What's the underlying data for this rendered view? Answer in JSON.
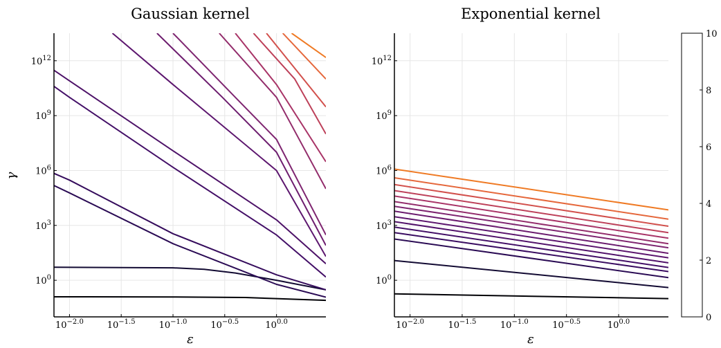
{
  "chart_data": [
    {
      "type": "line",
      "title": "Gaussian kernel",
      "xlabel": "ε",
      "ylabel": "γ",
      "x_scale": "log10",
      "y_scale": "log10",
      "xlim": [
        0.00708,
        3.0
      ],
      "ylim": [
        0.01,
        32000000000000.0
      ],
      "grid": true,
      "x_ticks": [
        {
          "base": "10",
          "exp": "−2.0",
          "value": 0.01
        },
        {
          "base": "10",
          "exp": "−1.5",
          "value": 0.0316
        },
        {
          "base": "10",
          "exp": "−1.0",
          "value": 0.1
        },
        {
          "base": "10",
          "exp": "−0.5",
          "value": 0.316
        },
        {
          "base": "10",
          "exp": "0.0",
          "value": 1.0
        }
      ],
      "y_ticks": [
        {
          "base": "10",
          "exp": "0",
          "value": 1
        },
        {
          "base": "10",
          "exp": "3",
          "value": 1000
        },
        {
          "base": "10",
          "exp": "6",
          "value": 1000000
        },
        {
          "base": "10",
          "exp": "9",
          "value": 1000000000
        },
        {
          "base": "10",
          "exp": "12",
          "value": 1000000000000
        }
      ],
      "series": [
        {
          "color_value": 0.0,
          "color": "#000004",
          "points": [
            [
              0.00708,
              0.125
            ],
            [
              0.1,
              0.123
            ],
            [
              0.5,
              0.115
            ],
            [
              1.0,
              0.1
            ],
            [
              3.0,
              0.08
            ]
          ]
        },
        {
          "color_value": 1.0,
          "color": "#120a32",
          "points": [
            [
              0.00708,
              5.2
            ],
            [
              0.1,
              4.8
            ],
            [
              0.2,
              4.0
            ],
            [
              0.4,
              2.5
            ],
            [
              1.0,
              1.0
            ],
            [
              3.0,
              0.3
            ]
          ]
        },
        {
          "color_value": 2.0,
          "color": "#2a0b54",
          "points": [
            [
              0.00708,
              150000
            ],
            [
              0.01,
              60000
            ],
            [
              0.1,
              100
            ],
            [
              1.0,
              0.6
            ],
            [
              3.0,
              0.12
            ]
          ]
        },
        {
          "color_value": 2.2,
          "color": "#350c5c",
          "points": [
            [
              0.00708,
              700000
            ],
            [
              0.01,
              300000
            ],
            [
              0.1,
              350
            ],
            [
              1.0,
              2
            ],
            [
              3.0,
              0.3
            ]
          ]
        },
        {
          "color_value": 3.0,
          "color": "#430f67",
          "points": [
            [
              0.00708,
              40000000000.0
            ],
            [
              0.01,
              10000000000.0
            ],
            [
              0.1,
              1500000.0
            ],
            [
              1.0,
              300
            ],
            [
              3.0,
              1.5
            ]
          ]
        },
        {
          "color_value": 3.2,
          "color": "#4d1268",
          "points": [
            [
              0.00708,
              300000000000.0
            ],
            [
              0.01,
              80000000000.0
            ],
            [
              0.1,
              12000000.0
            ],
            [
              1.0,
              2000
            ],
            [
              3.0,
              8
            ]
          ]
        },
        {
          "color_value": 4.0,
          "color": "#5c166e",
          "points": [
            [
              0.026,
              32000000000000.0
            ],
            [
              0.1,
              50000000000.0
            ],
            [
              1.0,
              1000000.0
            ],
            [
              3.0,
              20
            ]
          ]
        },
        {
          "color_value": 4.6,
          "color": "#6d1d6e",
          "points": [
            [
              0.07,
              32000000000000.0
            ],
            [
              0.3,
              10000000000.0
            ],
            [
              1.0,
              10000000.0
            ],
            [
              3.0,
              80
            ]
          ]
        },
        {
          "color_value": 5.0,
          "color": "#7e2570",
          "points": [
            [
              0.1,
              32000000000000.0
            ],
            [
              0.4,
              10000000000.0
            ],
            [
              1.0,
              50000000.0
            ],
            [
              3.0,
              300
            ]
          ]
        },
        {
          "color_value": 5.6,
          "color": "#922c6b",
          "points": [
            [
              0.28,
              32000000000000.0
            ],
            [
              1.0,
              10000000000.0
            ],
            [
              3.0,
              100000.0
            ]
          ]
        },
        {
          "color_value": 6.0,
          "color": "#a83467",
          "points": [
            [
              0.4,
              32000000000000.0
            ],
            [
              1.0,
              50000000000.0
            ],
            [
              3.0,
              3000000.0
            ]
          ]
        },
        {
          "color_value": 6.6,
          "color": "#bd4059",
          "points": [
            [
              0.6,
              32000000000000.0
            ],
            [
              1.5,
              100000000000.0
            ],
            [
              3.0,
              100000000.0
            ]
          ]
        },
        {
          "color_value": 7.0,
          "color": "#d2504c",
          "points": [
            [
              0.8,
              32000000000000.0
            ],
            [
              3.0,
              3000000000.0
            ]
          ]
        },
        {
          "color_value": 8.0,
          "color": "#e5673b",
          "points": [
            [
              1.15,
              32000000000000.0
            ],
            [
              3.0,
              100000000000.0
            ]
          ]
        },
        {
          "color_value": 9.0,
          "color": "#ef7a24",
          "points": [
            [
              1.4,
              32000000000000.0
            ],
            [
              3.0,
              1500000000000.0
            ]
          ]
        }
      ]
    },
    {
      "type": "line",
      "title": "Exponential kernel",
      "xlabel": "ε",
      "ylabel": "",
      "x_scale": "log10",
      "y_scale": "log10",
      "xlim": [
        0.00708,
        3.0
      ],
      "ylim": [
        0.01,
        32000000000000.0
      ],
      "grid": true,
      "x_ticks": [
        {
          "base": "10",
          "exp": "−2.0",
          "value": 0.01
        },
        {
          "base": "10",
          "exp": "−1.5",
          "value": 0.0316
        },
        {
          "base": "10",
          "exp": "−1.0",
          "value": 0.1
        },
        {
          "base": "10",
          "exp": "−0.5",
          "value": 0.316
        },
        {
          "base": "10",
          "exp": "0.0",
          "value": 1.0
        }
      ],
      "y_ticks": [
        {
          "base": "10",
          "exp": "0",
          "value": 1
        },
        {
          "base": "10",
          "exp": "3",
          "value": 1000
        },
        {
          "base": "10",
          "exp": "6",
          "value": 1000000
        },
        {
          "base": "10",
          "exp": "9",
          "value": 1000000000
        },
        {
          "base": "10",
          "exp": "12",
          "value": 1000000000000
        }
      ],
      "series": [
        {
          "color_value": 0.0,
          "color": "#000004",
          "points": [
            [
              0.00708,
              0.18
            ],
            [
              3.0,
              0.1
            ]
          ]
        },
        {
          "color_value": 1.0,
          "color": "#120a32",
          "points": [
            [
              0.00708,
              12
            ],
            [
              3.0,
              0.4
            ]
          ]
        },
        {
          "color_value": 2.0,
          "color": "#2a0b54",
          "points": [
            [
              0.00708,
              180
            ],
            [
              3.0,
              1.4
            ]
          ]
        },
        {
          "color_value": 2.5,
          "color": "#390c61",
          "points": [
            [
              0.00708,
              400
            ],
            [
              3.0,
              3
            ]
          ]
        },
        {
          "color_value": 3.0,
          "color": "#430f67",
          "points": [
            [
              0.00708,
              800
            ],
            [
              3.0,
              5
            ]
          ]
        },
        {
          "color_value": 3.5,
          "color": "#51126a",
          "points": [
            [
              0.00708,
              1600
            ],
            [
              3.0,
              9
            ]
          ]
        },
        {
          "color_value": 4.0,
          "color": "#5c166e",
          "points": [
            [
              0.00708,
              3000
            ],
            [
              3.0,
              17
            ]
          ]
        },
        {
          "color_value": 4.5,
          "color": "#6a1b6e",
          "points": [
            [
              0.00708,
              6000
            ],
            [
              3.0,
              30
            ]
          ]
        },
        {
          "color_value": 5.0,
          "color": "#7e2570",
          "points": [
            [
              0.00708,
              11000
            ],
            [
              3.0,
              60
            ]
          ]
        },
        {
          "color_value": 5.5,
          "color": "#922c6b",
          "points": [
            [
              0.00708,
              20000
            ],
            [
              3.0,
              100
            ]
          ]
        },
        {
          "color_value": 6.0,
          "color": "#a83467",
          "points": [
            [
              0.00708,
              40000
            ],
            [
              3.0,
              200
            ]
          ]
        },
        {
          "color_value": 6.5,
          "color": "#bd4059",
          "points": [
            [
              0.00708,
              80000
            ],
            [
              3.0,
              400
            ]
          ]
        },
        {
          "color_value": 7.0,
          "color": "#d2504c",
          "points": [
            [
              0.00708,
              170000
            ],
            [
              3.0,
              900
            ]
          ]
        },
        {
          "color_value": 8.0,
          "color": "#e5673b",
          "points": [
            [
              0.00708,
              400000
            ],
            [
              3.0,
              2200
            ]
          ]
        },
        {
          "color_value": 9.0,
          "color": "#ef7a24",
          "points": [
            [
              0.00708,
              1200000
            ],
            [
              3.0,
              7000
            ]
          ]
        }
      ]
    }
  ],
  "colorbar": {
    "min": 0,
    "max": 10,
    "ticks": [
      {
        "label": "0",
        "value": 0
      },
      {
        "label": "2",
        "value": 2
      },
      {
        "label": "4",
        "value": 4
      },
      {
        "label": "6",
        "value": 6
      },
      {
        "label": "8",
        "value": 8
      },
      {
        "label": "10",
        "value": 10
      }
    ]
  }
}
